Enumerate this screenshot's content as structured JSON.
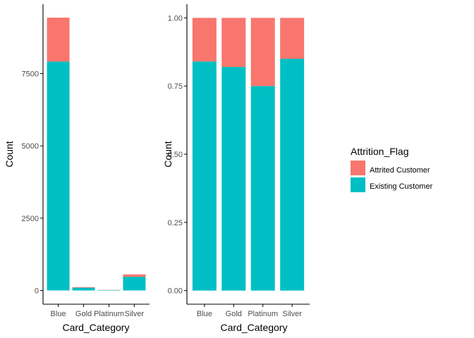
{
  "colors": {
    "attrited": "#F8766D",
    "existing": "#00BFC4",
    "axis": "#000000",
    "tick_text": "#4d4d4d"
  },
  "legend": {
    "title": "Attrition_Flag",
    "placement": "right",
    "entries": [
      "Attrited Customer",
      "Existing Customer"
    ]
  },
  "chart_data": [
    {
      "type": "bar",
      "stacked": true,
      "xlabel": "Card_Category",
      "ylabel": "Count",
      "categories": [
        "Blue",
        "Gold",
        "Platinum",
        "Silver"
      ],
      "series": [
        {
          "name": "Attrited Customer",
          "values": [
            1519,
            21,
            5,
            82
          ]
        },
        {
          "name": "Existing Customer",
          "values": [
            7917,
            95,
            15,
            473
          ]
        }
      ],
      "yticks": [
        0,
        2500,
        5000,
        7500
      ],
      "ytick_labels": [
        "0",
        "2500",
        "5000",
        "7500"
      ],
      "ylim": [
        -475,
        9900
      ],
      "grid": false
    },
    {
      "type": "bar",
      "stacked": true,
      "normalized": true,
      "xlabel": "Card_Category",
      "ylabel": "Count",
      "categories": [
        "Blue",
        "Gold",
        "Platinum",
        "Silver"
      ],
      "series": [
        {
          "name": "Attrited Customer",
          "values": [
            0.16,
            0.18,
            0.25,
            0.15
          ]
        },
        {
          "name": "Existing Customer",
          "values": [
            0.84,
            0.82,
            0.75,
            0.85
          ]
        }
      ],
      "yticks": [
        0,
        0.25,
        0.5,
        0.75,
        1.0
      ],
      "ytick_labels": [
        "0.00",
        "0.25",
        "0.50",
        "0.75",
        "1.00"
      ],
      "ylim": [
        -0.05,
        1.05
      ],
      "grid": false
    }
  ]
}
